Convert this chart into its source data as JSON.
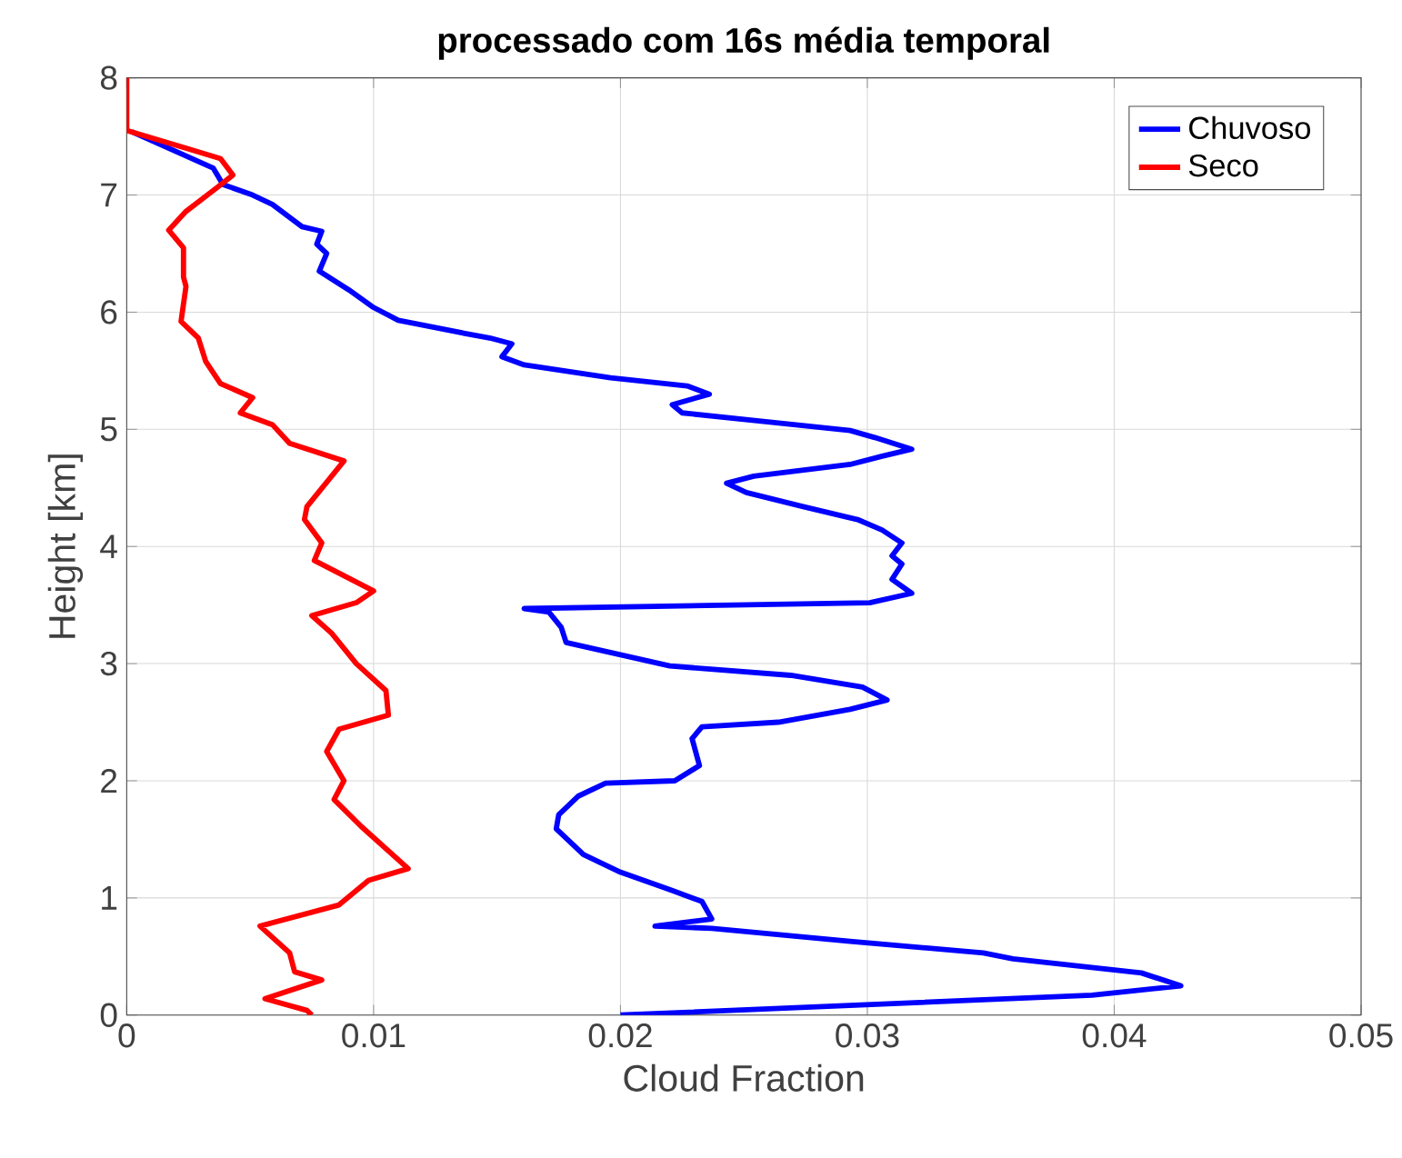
{
  "chart_data": {
    "type": "line",
    "title": "processado com 16s média temporal",
    "xlabel": "Cloud Fraction",
    "ylabel": "Height [km]",
    "xlim": [
      0,
      0.05
    ],
    "ylim": [
      0,
      8
    ],
    "xticks": [
      0,
      0.01,
      0.02,
      0.03,
      0.04,
      0.05
    ],
    "yticks": [
      0,
      1,
      2,
      3,
      4,
      5,
      6,
      7,
      8
    ],
    "grid": true,
    "legend": "top right",
    "line_style": "solid",
    "series": [
      {
        "name": "Chuvoso",
        "color": "#0000ff",
        "x": [
          0.02,
          0.0391,
          0.0427,
          0.0411,
          0.0359,
          0.0347,
          0.0293,
          0.0237,
          0.0214,
          0.0237,
          0.0233,
          0.022,
          0.02,
          0.0185,
          0.0174,
          0.0175,
          0.0183,
          0.0194,
          0.0222,
          0.0232,
          0.0229,
          0.0233,
          0.0264,
          0.0293,
          0.0308,
          0.0298,
          0.0269,
          0.022,
          0.0178,
          0.0176,
          0.0171,
          0.0161,
          0.0301,
          0.0318,
          0.031,
          0.0314,
          0.031,
          0.0314,
          0.0306,
          0.0296,
          0.0274,
          0.0251,
          0.0243,
          0.0254,
          0.0293,
          0.0306,
          0.0318,
          0.0303,
          0.0293,
          0.0257,
          0.0225,
          0.0221,
          0.0236,
          0.0227,
          0.0196,
          0.0161,
          0.0152,
          0.0156,
          0.0147,
          0.0139,
          0.011,
          0.01,
          0.009,
          0.0078,
          0.0081,
          0.0077,
          0.0079,
          0.0071,
          0.0059,
          0.0051,
          0.0039,
          0.0035,
          0.0002
        ],
        "values": [
          0,
          0.17,
          0.25,
          0.36,
          0.48,
          0.53,
          0.63,
          0.74,
          0.76,
          0.82,
          0.97,
          1.07,
          1.22,
          1.37,
          1.59,
          1.71,
          1.87,
          1.98,
          2.0,
          2.13,
          2.36,
          2.46,
          2.5,
          2.61,
          2.69,
          2.8,
          2.9,
          2.98,
          3.18,
          3.31,
          3.44,
          3.47,
          3.52,
          3.6,
          3.72,
          3.85,
          3.92,
          4.03,
          4.14,
          4.23,
          4.34,
          4.46,
          4.54,
          4.6,
          4.7,
          4.77,
          4.83,
          4.93,
          4.99,
          5.07,
          5.14,
          5.21,
          5.3,
          5.37,
          5.44,
          5.55,
          5.62,
          5.73,
          5.78,
          5.81,
          5.93,
          6.04,
          6.19,
          6.35,
          6.5,
          6.58,
          6.69,
          6.73,
          6.92,
          7.0,
          7.09,
          7.23,
          7.54
        ]
      },
      {
        "name": "Seco",
        "color": "#ff0000",
        "x": [
          0.0075,
          0.0073,
          0.0056,
          0.0079,
          0.0068,
          0.0066,
          0.0054,
          0.0086,
          0.0098,
          0.0114,
          0.0095,
          0.0084,
          0.0088,
          0.0081,
          0.0086,
          0.0106,
          0.0105,
          0.0093,
          0.0083,
          0.0075,
          0.0093,
          0.01,
          0.0076,
          0.0079,
          0.0072,
          0.0073,
          0.0088,
          0.0066,
          0.0059,
          0.0046,
          0.0051,
          0.0038,
          0.0032,
          0.0029,
          0.0022,
          0.0024,
          0.0023,
          0.0023,
          0.0017,
          0.0024,
          0.0037,
          0.0043,
          0.0038,
          0.0024,
          0,
          0
        ],
        "values": [
          0,
          0.04,
          0.14,
          0.3,
          0.37,
          0.53,
          0.76,
          0.94,
          1.15,
          1.25,
          1.61,
          1.84,
          2.0,
          2.25,
          2.44,
          2.56,
          2.77,
          3.0,
          3.26,
          3.41,
          3.52,
          3.62,
          3.88,
          4.03,
          4.23,
          4.34,
          4.73,
          4.88,
          5.04,
          5.14,
          5.27,
          5.39,
          5.58,
          5.78,
          5.92,
          6.22,
          6.3,
          6.55,
          6.7,
          6.86,
          7.07,
          7.17,
          7.31,
          7.4,
          7.55,
          8.0
        ]
      }
    ]
  }
}
